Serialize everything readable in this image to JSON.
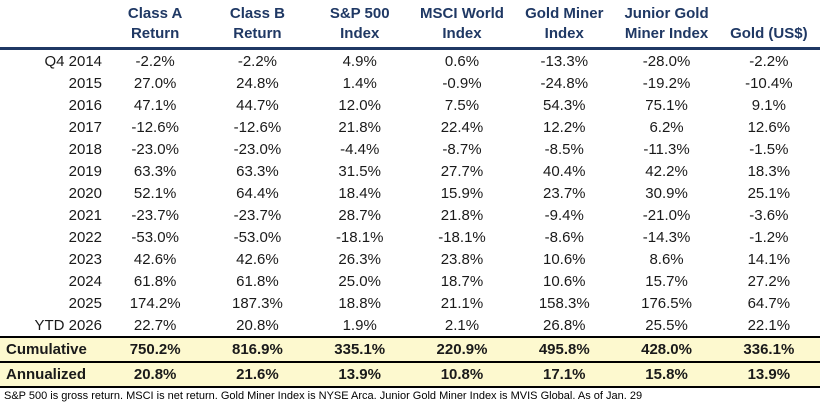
{
  "table": {
    "columns": [
      {
        "line1": "Class A",
        "line2": "Return"
      },
      {
        "line1": "Class B",
        "line2": "Return"
      },
      {
        "line1": "S&P 500",
        "line2": "Index"
      },
      {
        "line1": "MSCI World",
        "line2": "Index"
      },
      {
        "line1": "Gold Miner",
        "line2": "Index"
      },
      {
        "line1": "Junior Gold",
        "line2": "Miner Index"
      },
      {
        "line1": "",
        "line2": "Gold (US$)"
      }
    ],
    "rows": [
      {
        "label": "Q4 2014",
        "values": [
          "-2.2%",
          "-2.2%",
          "4.9%",
          "0.6%",
          "-13.3%",
          "-28.0%",
          "-2.2%"
        ]
      },
      {
        "label": "2015",
        "values": [
          "27.0%",
          "24.8%",
          "1.4%",
          "-0.9%",
          "-24.8%",
          "-19.2%",
          "-10.4%"
        ]
      },
      {
        "label": "2016",
        "values": [
          "47.1%",
          "44.7%",
          "12.0%",
          "7.5%",
          "54.3%",
          "75.1%",
          "9.1%"
        ]
      },
      {
        "label": "2017",
        "values": [
          "-12.6%",
          "-12.6%",
          "21.8%",
          "22.4%",
          "12.2%",
          "6.2%",
          "12.6%"
        ]
      },
      {
        "label": "2018",
        "values": [
          "-23.0%",
          "-23.0%",
          "-4.4%",
          "-8.7%",
          "-8.5%",
          "-11.3%",
          "-1.5%"
        ]
      },
      {
        "label": "2019",
        "values": [
          "63.3%",
          "63.3%",
          "31.5%",
          "27.7%",
          "40.4%",
          "42.2%",
          "18.3%"
        ]
      },
      {
        "label": "2020",
        "values": [
          "52.1%",
          "64.4%",
          "18.4%",
          "15.9%",
          "23.7%",
          "30.9%",
          "25.1%"
        ]
      },
      {
        "label": "2021",
        "values": [
          "-23.7%",
          "-23.7%",
          "28.7%",
          "21.8%",
          "-9.4%",
          "-21.0%",
          "-3.6%"
        ]
      },
      {
        "label": "2022",
        "values": [
          "-53.0%",
          "-53.0%",
          "-18.1%",
          "-18.1%",
          "-8.6%",
          "-14.3%",
          "-1.2%"
        ]
      },
      {
        "label": "2023",
        "values": [
          "42.6%",
          "42.6%",
          "26.3%",
          "23.8%",
          "10.6%",
          "8.6%",
          "14.1%"
        ]
      },
      {
        "label": "2024",
        "values": [
          "61.8%",
          "61.8%",
          "25.0%",
          "18.7%",
          "10.6%",
          "15.7%",
          "27.2%"
        ]
      },
      {
        "label": "2025",
        "values": [
          "174.2%",
          "187.3%",
          "18.8%",
          "21.1%",
          "158.3%",
          "176.5%",
          "64.7%"
        ]
      },
      {
        "label": "YTD 2026",
        "values": [
          "22.7%",
          "20.8%",
          "1.9%",
          "2.1%",
          "26.8%",
          "25.5%",
          "22.1%"
        ]
      }
    ],
    "summary_rows": [
      {
        "label": "Cumulative",
        "values": [
          "750.2%",
          "816.9%",
          "335.1%",
          "220.9%",
          "495.8%",
          "428.0%",
          "336.1%"
        ]
      },
      {
        "label": "Annualized",
        "values": [
          "20.8%",
          "21.6%",
          "13.9%",
          "10.8%",
          "17.1%",
          "15.8%",
          "13.9%"
        ]
      }
    ],
    "footnote": "S&P 500 is gross return. MSCI is net return. Gold Miner Index is NYSE Arca. Junior Gold Miner Index is MVIS Global. As of Jan. 29",
    "colors": {
      "header_text": "#1f3864",
      "header_rule": "#1f3864",
      "summary_bg": "#fdf9cf",
      "summary_rule": "#000000",
      "body_text": "#1a1a1a"
    }
  },
  "chart_data": {
    "type": "table",
    "title": "",
    "categories": [
      "Q4 2014",
      "2015",
      "2016",
      "2017",
      "2018",
      "2019",
      "2020",
      "2021",
      "2022",
      "2023",
      "2024",
      "2025",
      "YTD 2026",
      "Cumulative",
      "Annualized"
    ],
    "series": [
      {
        "name": "Class A Return",
        "values": [
          -2.2,
          27.0,
          47.1,
          -12.6,
          -23.0,
          63.3,
          52.1,
          -23.7,
          -53.0,
          42.6,
          61.8,
          174.2,
          22.7,
          750.2,
          20.8
        ]
      },
      {
        "name": "Class B Return",
        "values": [
          -2.2,
          24.8,
          44.7,
          -12.6,
          -23.0,
          63.3,
          64.4,
          -23.7,
          -53.0,
          42.6,
          61.8,
          187.3,
          20.8,
          816.9,
          21.6
        ]
      },
      {
        "name": "S&P 500 Index",
        "values": [
          4.9,
          1.4,
          12.0,
          21.8,
          -4.4,
          31.5,
          18.4,
          28.7,
          -18.1,
          26.3,
          25.0,
          18.8,
          1.9,
          335.1,
          13.9
        ]
      },
      {
        "name": "MSCI World Index",
        "values": [
          0.6,
          -0.9,
          7.5,
          22.4,
          -8.7,
          27.7,
          15.9,
          21.8,
          -18.1,
          23.8,
          18.7,
          21.1,
          2.1,
          220.9,
          10.8
        ]
      },
      {
        "name": "Gold Miner Index",
        "values": [
          -13.3,
          -24.8,
          54.3,
          12.2,
          -8.5,
          40.4,
          23.7,
          -9.4,
          -8.6,
          10.6,
          10.6,
          158.3,
          26.8,
          495.8,
          17.1
        ]
      },
      {
        "name": "Junior Gold Miner Index",
        "values": [
          -28.0,
          -19.2,
          75.1,
          6.2,
          -11.3,
          42.2,
          30.9,
          -21.0,
          -14.3,
          8.6,
          15.7,
          176.5,
          25.5,
          428.0,
          15.8
        ]
      },
      {
        "name": "Gold (US$)",
        "values": [
          -2.2,
          -10.4,
          9.1,
          12.6,
          -1.5,
          18.3,
          25.1,
          -3.6,
          -1.2,
          14.1,
          27.2,
          64.7,
          22.1,
          336.1,
          13.9
        ]
      }
    ],
    "units": "percent",
    "footnote": "S&P 500 is gross return. MSCI is net return. Gold Miner Index is NYSE Arca. Junior Gold Miner Index is MVIS Global. As of Jan. 29"
  }
}
